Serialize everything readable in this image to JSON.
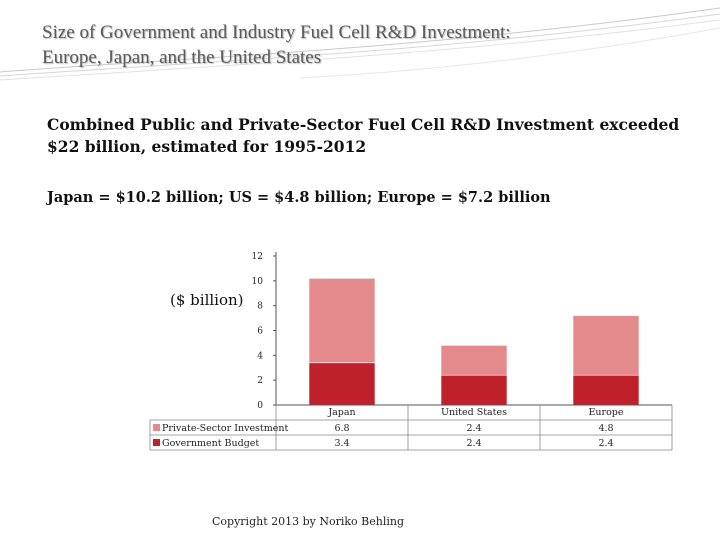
{
  "slide": {
    "title_line1": "Size of Government and Industry Fuel Cell R&D Investment:",
    "title_line2": "Europe, Japan, and the United States",
    "subtitle_line1": "Combined Public and Private-Sector Fuel Cell R&D Investment exceeded",
    "subtitle_line2": "$22 billion, estimated for 1995-2012",
    "breakdown": "Japan = $10.2 billion; US = $4.8 billion;  Europe = $7.2 billion",
    "unit_label": "($ billion)",
    "copyright": "Copyright 2013 by Noriko Behling"
  },
  "chart_data": {
    "type": "bar",
    "stacked": true,
    "categories": [
      "Japan",
      "United States",
      "Europe"
    ],
    "series": [
      {
        "name": "Government Budget",
        "values": [
          3.4,
          2.4,
          2.4
        ],
        "color": "#c0202a",
        "value_labels": [
          "3.4",
          "2.4",
          "2.4"
        ]
      },
      {
        "name": "Private-Sector Investment",
        "values": [
          6.8,
          2.4,
          4.8
        ],
        "color": "#e58a8c",
        "value_labels": [
          "6.8",
          "2.4",
          "4.8"
        ]
      }
    ],
    "ylim": [
      0,
      12
    ],
    "yticks": [
      0,
      2,
      4,
      6,
      8,
      10,
      12
    ],
    "grid": false,
    "legend": "data-table-left"
  }
}
